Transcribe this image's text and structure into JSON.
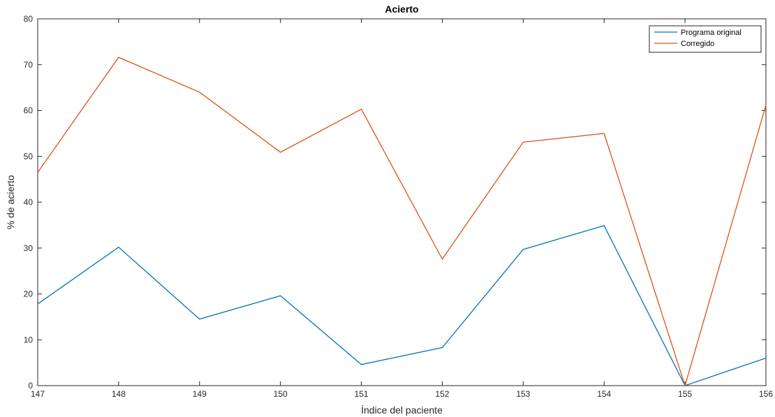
{
  "chart_data": {
    "type": "line",
    "title": "Acierto",
    "xlabel": "Índice del paciente",
    "ylabel": "% de acierto",
    "x": [
      147,
      148,
      149,
      150,
      151,
      152,
      153,
      154,
      155,
      156
    ],
    "xlim": [
      147,
      156
    ],
    "ylim": [
      0,
      80
    ],
    "yticks": [
      0,
      10,
      20,
      30,
      40,
      50,
      60,
      70,
      80
    ],
    "grid": false,
    "legend_position": "top-right",
    "series": [
      {
        "name": "Programa original",
        "color": "#0072BD",
        "values": [
          17.8,
          30.2,
          14.5,
          19.6,
          4.6,
          8.3,
          29.7,
          34.9,
          0,
          6.0
        ]
      },
      {
        "name": "Corregido",
        "color": "#D95319",
        "values": [
          46.5,
          71.6,
          64.0,
          50.9,
          60.3,
          27.6,
          53.1,
          55.0,
          0,
          61.2
        ]
      }
    ]
  }
}
